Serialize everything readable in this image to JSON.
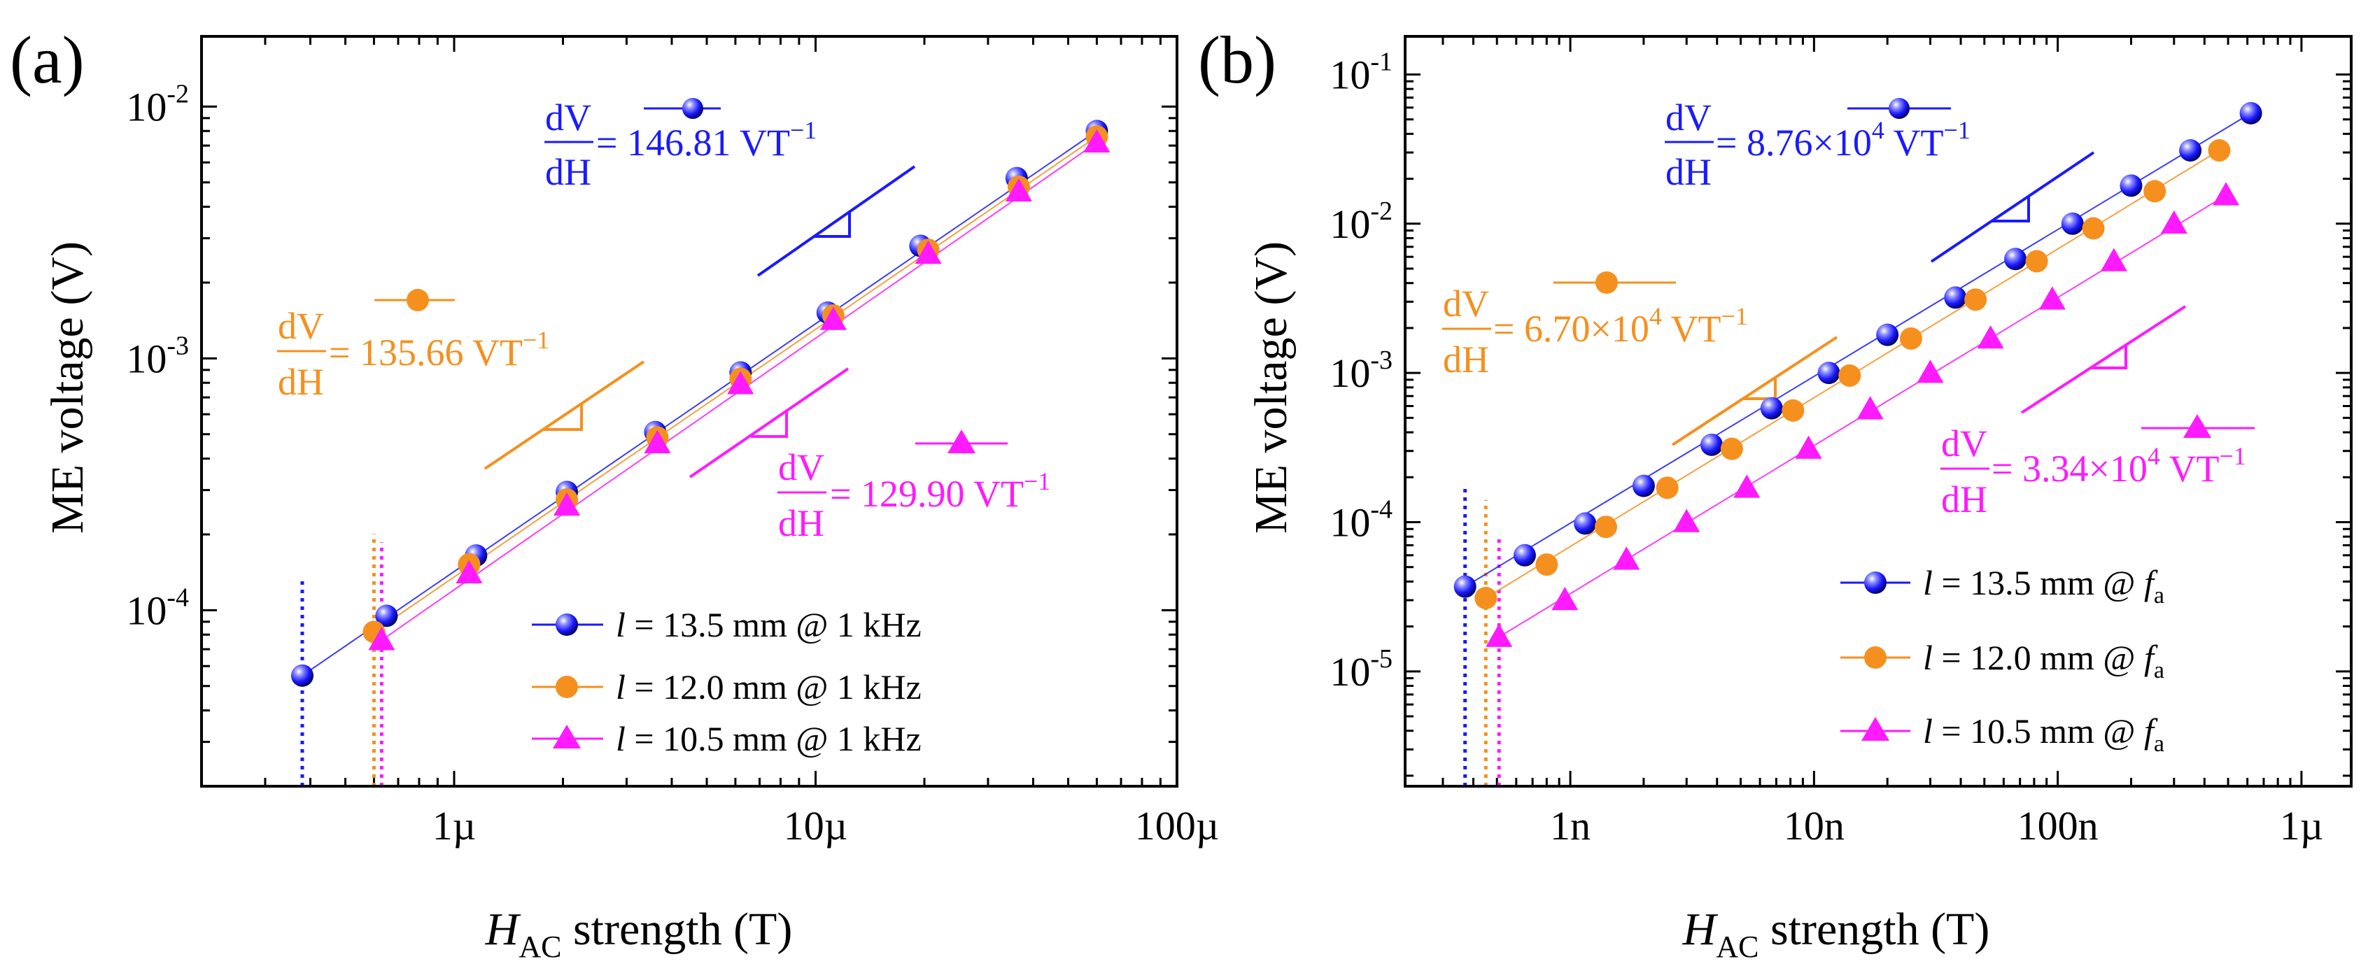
{
  "colors": {
    "blue": "#1a1aff",
    "orange": "#f5901e",
    "magenta": "#ff1aff",
    "axis": "#000000"
  },
  "chart_data": [
    {
      "id": "a",
      "panel_label": "(a)",
      "type": "scatter",
      "xscale": "log",
      "yscale": "log",
      "xlim": [
        2e-07,
        0.0001
      ],
      "ylim": [
        2e-05,
        0.019
      ],
      "xticks": [
        {
          "value": 1e-06,
          "label": "1µ"
        },
        {
          "value": 1e-05,
          "label": "10µ"
        },
        {
          "value": 0.0001,
          "label": "100µ"
        }
      ],
      "yticks": [
        {
          "value": 0.0001,
          "base": "10",
          "exp": "-4"
        },
        {
          "value": 0.001,
          "base": "10",
          "exp": "-3"
        },
        {
          "value": 0.01,
          "base": "10",
          "exp": "-2"
        }
      ],
      "xlabel": {
        "main": "H",
        "sub": "AC",
        "rest": " strength (T)"
      },
      "ylabel": "ME voltage (V)",
      "series": [
        {
          "name": "l = 13.5 mm @ 1 kHz",
          "legend": {
            "var": "l",
            "text": " = 13.5 mm @ 1 kHz"
          },
          "color_key": "blue",
          "marker": "sphere",
          "x": [
            3.8e-07,
            6.5e-07,
            1.15e-06,
            2.05e-06,
            3.6e-06,
            6.2e-06,
            1.08e-05,
            1.95e-05,
            3.6e-05,
            6e-05
          ],
          "y": [
            5.5e-05,
            9.5e-05,
            0.000165,
            0.000295,
            0.00051,
            0.00088,
            0.00152,
            0.0028,
            0.0052,
            0.008
          ],
          "threshold_x": 3.8e-07
        },
        {
          "name": "l = 12.0 mm @ 1 kHz",
          "legend": {
            "var": "l",
            "text": " = 12.0 mm @ 1 kHz"
          },
          "color_key": "orange",
          "marker": "circle",
          "x": [
            6e-07,
            1.1e-06,
            2.05e-06,
            3.65e-06,
            6.2e-06,
            1.12e-05,
            2.05e-05,
            3.65e-05,
            6e-05
          ],
          "y": [
            8.2e-05,
            0.000152,
            0.000275,
            0.000485,
            0.00083,
            0.00148,
            0.0027,
            0.0048,
            0.0076
          ],
          "threshold_x": 6e-07
        },
        {
          "name": "l = 10.5 mm @ 1 kHz",
          "legend": {
            "var": "l",
            "text": " = 10.5 mm @ 1 kHz"
          },
          "color_key": "magenta",
          "marker": "triangle",
          "x": [
            6.3e-07,
            1.1e-06,
            2.05e-06,
            3.65e-06,
            6.2e-06,
            1.12e-05,
            2.05e-05,
            3.65e-05,
            6e-05
          ],
          "y": [
            7.6e-05,
            0.00014,
            0.00026,
            0.00046,
            0.00079,
            0.00142,
            0.0026,
            0.0046,
            0.0072
          ],
          "threshold_x": 6.3e-07
        }
      ],
      "legend_position": "bottom-right",
      "annotations": [
        {
          "color_key": "blue",
          "numer": "dV",
          "denom": "dH",
          "value": " = 146.81 VT",
          "exp": "−1"
        },
        {
          "color_key": "orange",
          "numer": "dV",
          "denom": "dH",
          "value": " = 135.66 VT",
          "exp": "−1"
        },
        {
          "color_key": "magenta",
          "numer": "dV",
          "denom": "dH",
          "value": " = 129.90 VT",
          "exp": "−1"
        }
      ]
    },
    {
      "id": "b",
      "panel_label": "(b)",
      "type": "scatter",
      "xscale": "log",
      "yscale": "log",
      "xlim": [
        2.1e-10,
        1.6e-06
      ],
      "ylim": [
        1.7e-06,
        0.18
      ],
      "xticks": [
        {
          "value": 1e-09,
          "label": "1n"
        },
        {
          "value": 1e-08,
          "label": "10n"
        },
        {
          "value": 1e-07,
          "label": "100n"
        },
        {
          "value": 1e-06,
          "label": "1µ"
        }
      ],
      "yticks": [
        {
          "value": 1e-05,
          "base": "10",
          "exp": "-5"
        },
        {
          "value": 0.0001,
          "base": "10",
          "exp": "-4"
        },
        {
          "value": 0.001,
          "base": "10",
          "exp": "-3"
        },
        {
          "value": 0.01,
          "base": "10",
          "exp": "-2"
        },
        {
          "value": 0.1,
          "base": "10",
          "exp": "-1"
        }
      ],
      "xlabel": {
        "main": "H",
        "sub": "AC",
        "rest": " strength (T)"
      },
      "ylabel": "ME voltage (V)",
      "series": [
        {
          "name": "l = 13.5 mm @ fa",
          "legend": {
            "var": "l",
            "text": " = 13.5 mm @ ",
            "f": "f",
            "fsub": "a"
          },
          "color_key": "blue",
          "marker": "sphere",
          "x": [
            3.7e-10,
            6.5e-10,
            1.15e-09,
            2e-09,
            3.8e-09,
            6.7e-09,
            1.15e-08,
            2e-08,
            3.8e-08,
            6.7e-08,
            1.15e-07,
            2e-07,
            3.5e-07,
            6.2e-07
          ],
          "y": [
            3.7e-05,
            6e-05,
            9.8e-05,
            0.000175,
            0.00033,
            0.00058,
            0.001,
            0.0018,
            0.0032,
            0.0058,
            0.01,
            0.018,
            0.031,
            0.055
          ],
          "threshold_x": 3.7e-10
        },
        {
          "name": "l = 12.0 mm @ fa",
          "legend": {
            "var": "l",
            "text": " = 12.0 mm @ ",
            "f": "f",
            "fsub": "a"
          },
          "color_key": "orange",
          "marker": "circle",
          "x": [
            4.5e-10,
            8e-10,
            1.4e-09,
            2.5e-09,
            4.6e-09,
            8.2e-09,
            1.4e-08,
            2.5e-08,
            4.6e-08,
            8.2e-08,
            1.4e-07,
            2.5e-07,
            4.6e-07
          ],
          "y": [
            3.1e-05,
            5.2e-05,
            9.3e-05,
            0.00017,
            0.00031,
            0.00056,
            0.00096,
            0.0017,
            0.0031,
            0.0056,
            0.0093,
            0.0165,
            0.031
          ],
          "threshold_x": 4.5e-10
        },
        {
          "name": "l = 10.5 mm @ fa",
          "legend": {
            "var": "l",
            "text": " = 10.5 mm @ ",
            "f": "f",
            "fsub": "a"
          },
          "color_key": "magenta",
          "marker": "triangle",
          "x": [
            5.1e-10,
            9.5e-10,
            1.7e-09,
            3e-09,
            5.3e-09,
            9.5e-09,
            1.7e-08,
            3e-08,
            5.3e-08,
            9.5e-08,
            1.7e-07,
            3e-07,
            4.9e-07
          ],
          "y": [
            1.7e-05,
            3e-05,
            5.6e-05,
            0.0001,
            0.00017,
            0.00031,
            0.00057,
            0.001,
            0.0017,
            0.0031,
            0.0056,
            0.01,
            0.0155
          ],
          "threshold_x": 5.1e-10
        }
      ],
      "legend_position": "bottom-right",
      "annotations": [
        {
          "color_key": "blue",
          "numer": "dV",
          "denom": "dH",
          "value": " = 8.76×10",
          "exp": "4",
          "unit": " VT",
          "exp2": "−1"
        },
        {
          "color_key": "orange",
          "numer": "dV",
          "denom": "dH",
          "value": " = 6.70×10",
          "exp": "4",
          "unit": " VT",
          "exp2": "−1"
        },
        {
          "color_key": "magenta",
          "numer": "dV",
          "denom": "dH",
          "value": " = 3.34×10",
          "exp": "4",
          "unit": " VT",
          "exp2": "−1"
        }
      ]
    }
  ]
}
